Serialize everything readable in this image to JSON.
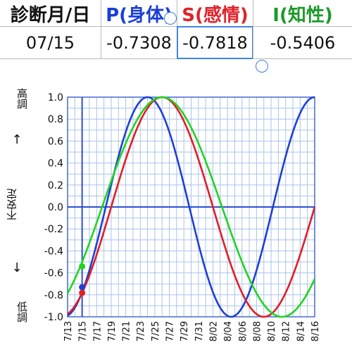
{
  "table": {
    "headers": [
      "診断月/日",
      "P(身体)",
      "S(感情)",
      "I(知性)"
    ],
    "values": [
      "07/15",
      "-0.7308",
      "-0.7818",
      "-0.5406"
    ]
  },
  "side_labels": {
    "high": "高調",
    "mid": "不安定",
    "low": "低調",
    "up_arrow": "↑",
    "down_arrow": "↓"
  },
  "chart_data": {
    "type": "line",
    "x_start": "7/13",
    "x_tick_labels": [
      "7/13",
      "7/15",
      "7/17",
      "7/19",
      "7/21",
      "7/23",
      "7/25",
      "7/27",
      "7/29",
      "7/31",
      "8/02",
      "8/04",
      "8/06",
      "8/08",
      "8/10",
      "8/12",
      "8/14",
      "8/16"
    ],
    "ylim": [
      -1.0,
      1.0
    ],
    "y_ticks": [
      "1.0",
      "0.8",
      "0.6",
      "0.4",
      "0.2",
      "0.0",
      "-0.2",
      "-0.4",
      "-0.6",
      "-0.8",
      "-1.0"
    ],
    "grid": true,
    "selected_day": "7/15",
    "series": [
      {
        "color": "#1f3fd6",
        "period_days": 23,
        "peak_day": "7/24",
        "value_at_selected": -0.7308
      },
      {
        "color": "#e01e26",
        "period_days": 28,
        "peak_day": "7/26",
        "value_at_selected": -0.7818
      },
      {
        "color": "#22d322",
        "period_days": 33,
        "peak_day": "7/26",
        "value_at_selected": -0.5406
      }
    ]
  }
}
